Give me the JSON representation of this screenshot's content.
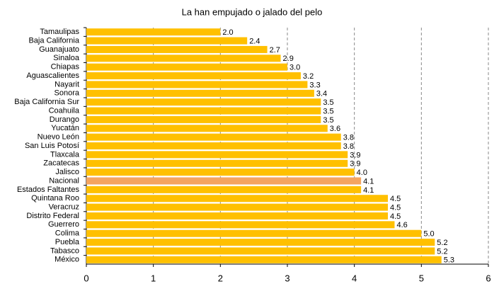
{
  "chart_data": {
    "type": "bar",
    "orientation": "horizontal",
    "title": "La han empujado o jalado del pelo",
    "categories": [
      "Tamaulipas",
      "Baja California",
      "Guanajuato",
      "Sinaloa",
      "Chiapas",
      "Aguascalientes",
      "Nayarit",
      "Sonora",
      "Baja California Sur",
      "Coahuila",
      "Durango",
      "Yucatán",
      "Nuevo León",
      "San Luis Potosí",
      "Tlaxcala",
      "Zacatecas",
      "Jalisco",
      "Nacional",
      "Estados Faltantes",
      "Quintana Roo",
      "Veracruz",
      "Distrito Federal",
      "Guerrero",
      "Colima",
      "Puebla",
      "Tabasco",
      "México"
    ],
    "values": [
      2.0,
      2.4,
      2.7,
      2.9,
      3.0,
      3.2,
      3.3,
      3.4,
      3.5,
      3.5,
      3.5,
      3.6,
      3.8,
      3.8,
      3.9,
      3.9,
      4.0,
      4.1,
      4.1,
      4.5,
      4.5,
      4.5,
      4.6,
      5.0,
      5.2,
      5.2,
      5.3
    ],
    "value_labels": [
      "2.0",
      "2.4",
      "2.7",
      "2.9",
      "3.0",
      "3.2",
      "3.3",
      "3.4",
      "3.5",
      "3.5",
      "3.5",
      "3.6",
      "3.8",
      "3.8",
      "3.9",
      "3.9",
      "4.0",
      "4.1",
      "4.1",
      "4.5",
      "4.5",
      "4.5",
      "4.6",
      "5.0",
      "5.2",
      "5.2",
      "5.3"
    ],
    "colors": [
      "#ffc000",
      "#ffc000",
      "#ffc000",
      "#ffc000",
      "#ffc000",
      "#ffc000",
      "#ffc000",
      "#ffc000",
      "#ffc000",
      "#ffc000",
      "#ffc000",
      "#ffc000",
      "#ffc000",
      "#ffc000",
      "#ffc000",
      "#ffc000",
      "#ffc000",
      "#f4a460",
      "#ffc000",
      "#ffc000",
      "#ffc000",
      "#ffc000",
      "#ffc000",
      "#ffc000",
      "#ffc000",
      "#ffc000",
      "#ffc000"
    ],
    "xlim": [
      0,
      6
    ],
    "xticks": [
      0,
      1,
      2,
      3,
      4,
      5,
      6
    ],
    "grid": true
  }
}
